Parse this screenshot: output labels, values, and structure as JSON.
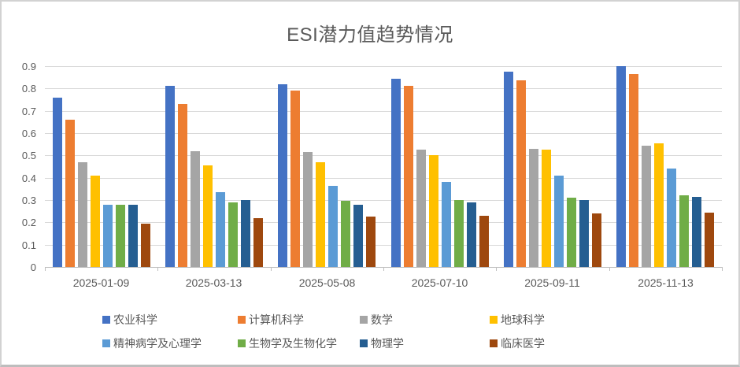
{
  "chart_data": {
    "type": "bar",
    "title": "ESI潜力值趋势情况",
    "categories": [
      "2025-01-09",
      "2025-03-13",
      "2025-05-08",
      "2025-07-10",
      "2025-09-11",
      "2025-11-13"
    ],
    "series": [
      {
        "name": "农业科学",
        "color": "#4472C4",
        "values": [
          0.76,
          0.81,
          0.82,
          0.845,
          0.875,
          0.9
        ]
      },
      {
        "name": "计算机科学",
        "color": "#ED7D31",
        "values": [
          0.66,
          0.73,
          0.79,
          0.81,
          0.835,
          0.865
        ]
      },
      {
        "name": "数学",
        "color": "#A5A5A5",
        "values": [
          0.47,
          0.52,
          0.515,
          0.525,
          0.53,
          0.545
        ]
      },
      {
        "name": "地球科学",
        "color": "#FFC000",
        "values": [
          0.41,
          0.455,
          0.47,
          0.5,
          0.525,
          0.555
        ]
      },
      {
        "name": "精神病学及心理学",
        "color": "#5B9BD5",
        "values": [
          0.28,
          0.335,
          0.365,
          0.38,
          0.41,
          0.44
        ]
      },
      {
        "name": "生物学及生物化学",
        "color": "#70AD47",
        "values": [
          0.28,
          0.29,
          0.295,
          0.3,
          0.31,
          0.32
        ]
      },
      {
        "name": "物理学",
        "color": "#255E91",
        "values": [
          0.28,
          0.3,
          0.28,
          0.29,
          0.3,
          0.315
        ]
      },
      {
        "name": "临床医学",
        "color": "#9E480E",
        "values": [
          0.195,
          0.22,
          0.225,
          0.23,
          0.24,
          0.245
        ]
      }
    ],
    "ylim": [
      0,
      0.9
    ],
    "ytick_step": 0.1,
    "yticks": [
      "0",
      "0.1",
      "0.2",
      "0.3",
      "0.4",
      "0.5",
      "0.6",
      "0.7",
      "0.8",
      "0.9"
    ],
    "grid": true,
    "legend_position": "bottom",
    "axis_label_color": "#595959",
    "gridline_color": "#d9d9d9",
    "axis_line_color": "#bfbfbf"
  }
}
